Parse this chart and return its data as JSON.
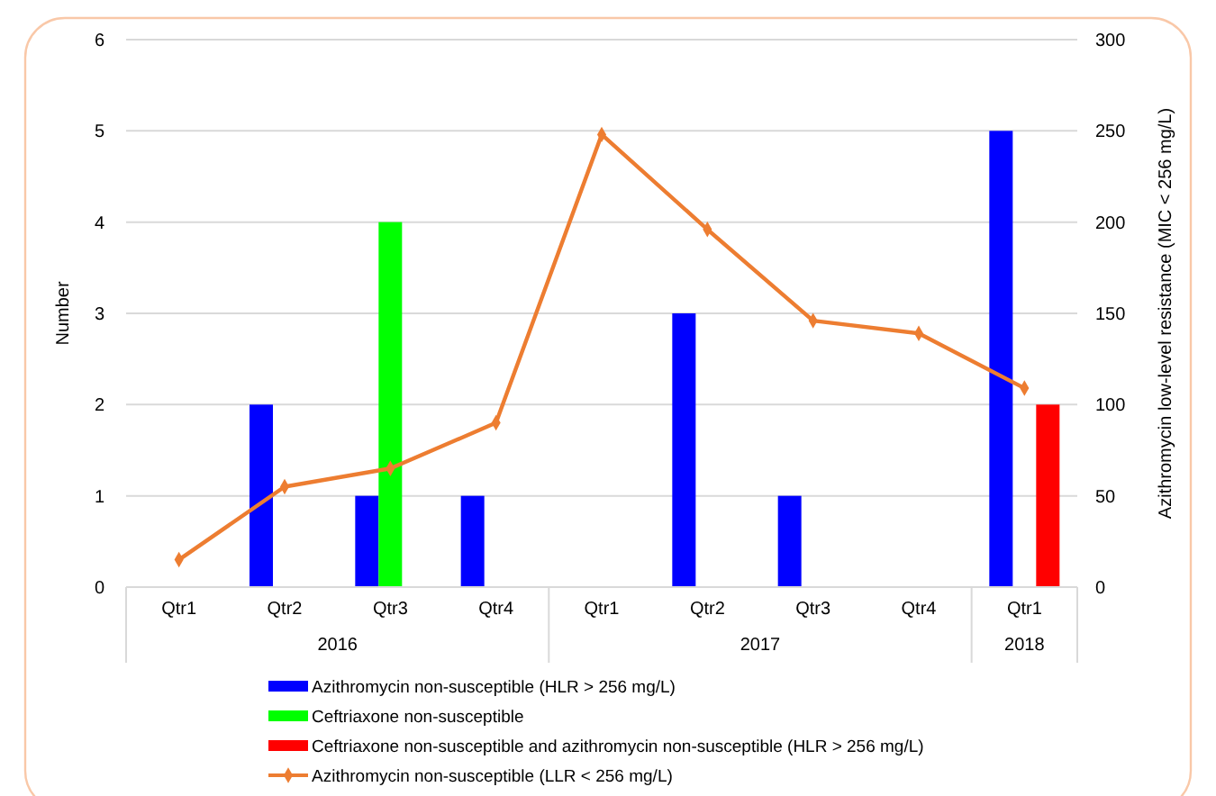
{
  "chart_data": {
    "type": "bar",
    "ylabel": "Number",
    "y2label": "Azithromycin low-level resistance  (MIC < 256 mg/L)",
    "categories": [
      "Qtr1",
      "Qtr2",
      "Qtr3",
      "Qtr4",
      "Qtr1",
      "Qtr2",
      "Qtr3",
      "Qtr4",
      "Qtr1"
    ],
    "annotations": [
      "2016",
      "2017",
      "2018"
    ],
    "ylim": [
      0,
      6
    ],
    "yticks": [
      0,
      1,
      2,
      3,
      4,
      5,
      6
    ],
    "y2lim": [
      0,
      300
    ],
    "y2ticks": [
      0,
      50,
      100,
      150,
      200,
      250,
      300
    ],
    "grid": "y",
    "legend": "bottom",
    "marker": "diamond",
    "line_style": "solid",
    "series": [
      {
        "name": "Azithromycin non-susceptible (HLR > 256 mg/L)",
        "color": "#0000ff",
        "values": [
          null,
          2,
          1,
          1,
          null,
          3,
          1,
          null,
          5
        ]
      },
      {
        "name": "Ceftriaxone non-susceptible",
        "color": "#00ff00",
        "values": [
          null,
          null,
          4,
          null,
          null,
          null,
          null,
          null,
          null
        ]
      },
      {
        "name": "Ceftriaxone non-susceptible and azithromycin non-susceptible (HLR > 256 mg/L)",
        "color": "#ff0000",
        "values": [
          null,
          null,
          null,
          null,
          null,
          null,
          null,
          null,
          2
        ]
      },
      {
        "name": "Azithromycin non-susceptible (LLR < 256 mg/L)",
        "color": "#ed7d31",
        "type": "line",
        "axis": "y2",
        "values": [
          15,
          55,
          65,
          90,
          248,
          196,
          146,
          139,
          109
        ]
      }
    ]
  }
}
